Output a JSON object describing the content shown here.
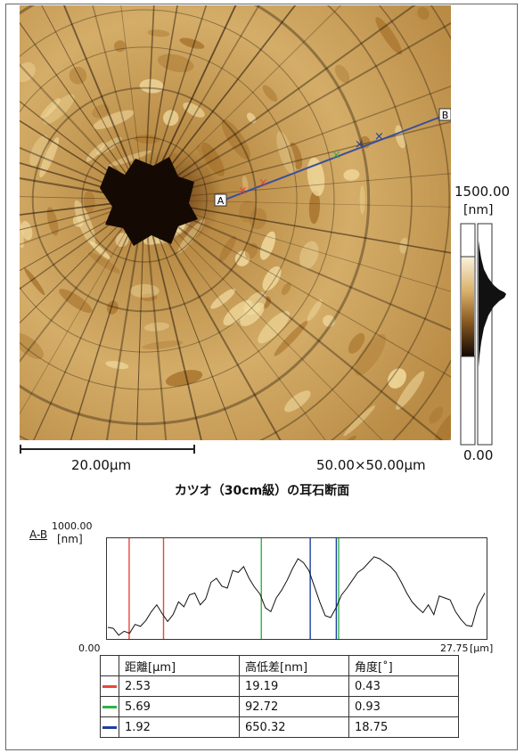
{
  "colors": {
    "red": "#e8463a",
    "green": "#2eb24a",
    "blue": "#1f3f9e",
    "afm_dark": "#1a0d04",
    "afm_mid": "#a8742e",
    "afm_light": "#f2dca0"
  },
  "afm_image": {
    "line_start_label": "A",
    "line_end_label": "B",
    "scale_bar_label": "20.00µm",
    "size_label": "50.00×50.00µm",
    "color_scale_max": "1500.00",
    "color_scale_unit": "[nm]",
    "color_scale_min": "0.00",
    "caption": "カツオ（30cm級）の耳石断面"
  },
  "chart_data": {
    "type": "line",
    "title": "A-B",
    "ylabel": "[nm]",
    "y_max_label": "1000.00",
    "x_min_label": "0.00",
    "x_max_label": "27.75",
    "xunit": "[µm]",
    "xlim": [
      0,
      27.75
    ],
    "ylim": [
      0,
      1000
    ],
    "series": [
      {
        "x": [
          0.0,
          0.4,
          0.8,
          1.2,
          1.6,
          2.0,
          2.4,
          2.8,
          3.2,
          3.6,
          4.0,
          4.4,
          4.8,
          5.2,
          5.6,
          6.0,
          6.4,
          6.8,
          7.2,
          7.6,
          8.0,
          8.4,
          8.8,
          9.2,
          9.6,
          10.0,
          10.4,
          10.8,
          11.2,
          11.6,
          12.0,
          12.4,
          12.8,
          13.2,
          13.6,
          14.0,
          14.4,
          14.8,
          15.2,
          15.6,
          16.0,
          16.4,
          16.8,
          17.2,
          17.6,
          18.0,
          18.4,
          18.8,
          19.2,
          19.6,
          20.0,
          20.4,
          20.8,
          21.2,
          21.6,
          22.0,
          22.4,
          22.8,
          23.2,
          23.6,
          24.0,
          24.4,
          24.8,
          25.2,
          25.6,
          26.0,
          26.4,
          26.8,
          27.2,
          27.75
        ],
        "values": [
          100,
          90,
          20,
          60,
          40,
          130,
          110,
          170,
          260,
          330,
          240,
          160,
          230,
          360,
          310,
          430,
          450,
          330,
          390,
          560,
          600,
          520,
          500,
          680,
          660,
          720,
          600,
          510,
          440,
          300,
          260,
          400,
          480,
          580,
          700,
          800,
          760,
          680,
          520,
          360,
          220,
          200,
          300,
          430,
          500,
          580,
          660,
          700,
          760,
          820,
          800,
          760,
          720,
          660,
          560,
          450,
          360,
          300,
          250,
          330,
          230,
          420,
          400,
          380,
          260,
          180,
          120,
          110,
          310,
          450
        ]
      }
    ],
    "cursors": [
      {
        "color": "red",
        "x": 1.57
      },
      {
        "color": "red",
        "x": 4.1
      },
      {
        "color": "green",
        "x": 11.3
      },
      {
        "color": "green",
        "x": 16.99
      },
      {
        "color": "blue",
        "x": 14.9
      },
      {
        "color": "blue",
        "x": 16.82
      }
    ]
  },
  "table": {
    "headers": [
      "距離[µm]",
      "高低差[nm]",
      "角度[˚]"
    ],
    "rows": [
      {
        "color": "red",
        "cells": [
          "2.53",
          "19.19",
          "0.43"
        ]
      },
      {
        "color": "green",
        "cells": [
          "5.69",
          "92.72",
          "0.93"
        ]
      },
      {
        "color": "blue",
        "cells": [
          "1.92",
          "650.32",
          "18.75"
        ]
      }
    ]
  }
}
